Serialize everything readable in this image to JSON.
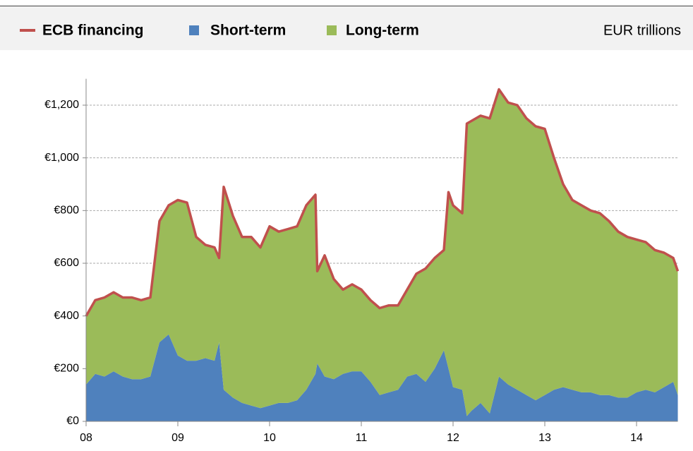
{
  "chart_data": {
    "type": "stacked_area_line",
    "units": "EUR trillions",
    "x": [
      2008.0,
      2008.1,
      2008.2,
      2008.3,
      2008.4,
      2008.5,
      2008.6,
      2008.7,
      2008.8,
      2008.9,
      2009.0,
      2009.1,
      2009.2,
      2009.3,
      2009.4,
      2009.45,
      2009.5,
      2009.6,
      2009.7,
      2009.8,
      2009.9,
      2010.0,
      2010.1,
      2010.2,
      2010.3,
      2010.4,
      2010.5,
      2010.52,
      2010.6,
      2010.7,
      2010.8,
      2010.9,
      2011.0,
      2011.1,
      2011.2,
      2011.3,
      2011.4,
      2011.5,
      2011.6,
      2011.7,
      2011.8,
      2011.9,
      2011.95,
      2012.0,
      2012.1,
      2012.15,
      2012.2,
      2012.3,
      2012.4,
      2012.5,
      2012.6,
      2012.7,
      2012.8,
      2012.9,
      2013.0,
      2013.1,
      2013.2,
      2013.3,
      2013.4,
      2013.5,
      2013.6,
      2013.7,
      2013.8,
      2013.9,
      2014.0,
      2014.1,
      2014.2,
      2014.3,
      2014.4,
      2014.45
    ],
    "series": [
      {
        "name": "ECB financing",
        "color": "#c0504d",
        "kind": "line",
        "values": [
          400,
          460,
          470,
          490,
          470,
          470,
          460,
          470,
          760,
          820,
          840,
          830,
          700,
          670,
          660,
          620,
          890,
          780,
          700,
          700,
          660,
          740,
          720,
          730,
          740,
          820,
          860,
          570,
          630,
          540,
          500,
          520,
          500,
          460,
          430,
          440,
          440,
          500,
          560,
          580,
          620,
          650,
          870,
          820,
          790,
          1130,
          1140,
          1160,
          1150,
          1260,
          1210,
          1200,
          1150,
          1120,
          1110,
          1000,
          900,
          840,
          820,
          800,
          790,
          760,
          720,
          700,
          690,
          680,
          650,
          640,
          620,
          570
        ]
      },
      {
        "name": "Short-term",
        "color": "#4f81bd",
        "kind": "area",
        "values": [
          140,
          180,
          170,
          190,
          170,
          160,
          160,
          170,
          300,
          330,
          250,
          230,
          230,
          240,
          230,
          300,
          120,
          90,
          70,
          60,
          50,
          60,
          70,
          70,
          80,
          120,
          180,
          220,
          170,
          160,
          180,
          190,
          190,
          150,
          100,
          110,
          120,
          170,
          180,
          150,
          200,
          270,
          200,
          130,
          120,
          20,
          40,
          70,
          30,
          170,
          140,
          120,
          100,
          80,
          100,
          120,
          130,
          120,
          110,
          110,
          100,
          100,
          90,
          90,
          110,
          120,
          110,
          130,
          150,
          100
        ]
      },
      {
        "name": "Long-term",
        "color": "#9bbb59",
        "kind": "area",
        "values": [
          260,
          280,
          300,
          300,
          300,
          310,
          300,
          300,
          460,
          490,
          590,
          600,
          470,
          430,
          430,
          320,
          770,
          690,
          630,
          640,
          610,
          680,
          650,
          660,
          660,
          700,
          680,
          350,
          460,
          380,
          320,
          330,
          310,
          310,
          330,
          330,
          320,
          330,
          380,
          430,
          420,
          380,
          670,
          690,
          670,
          1110,
          1100,
          1090,
          1120,
          1090,
          1070,
          1080,
          1050,
          1040,
          1010,
          880,
          770,
          720,
          710,
          690,
          690,
          660,
          630,
          610,
          580,
          560,
          540,
          510,
          470,
          470
        ]
      }
    ],
    "xlim": [
      2008,
      2014.45
    ],
    "xticks": [
      {
        "value": 2008,
        "label": "08"
      },
      {
        "value": 2009,
        "label": "09"
      },
      {
        "value": 2010,
        "label": "10"
      },
      {
        "value": 2011,
        "label": "11"
      },
      {
        "value": 2012,
        "label": "12"
      },
      {
        "value": 2013,
        "label": "13"
      },
      {
        "value": 2014,
        "label": "14"
      }
    ],
    "ylim": [
      0,
      1300
    ],
    "yticks": [
      {
        "value": 0,
        "label": "€0"
      },
      {
        "value": 200,
        "label": "€200"
      },
      {
        "value": 400,
        "label": "€400"
      },
      {
        "value": 600,
        "label": "€600"
      },
      {
        "value": 800,
        "label": "€800"
      },
      {
        "value": 1000,
        "label": "€1,000"
      },
      {
        "value": 1200,
        "label": "€1,200"
      }
    ],
    "grid": true
  }
}
